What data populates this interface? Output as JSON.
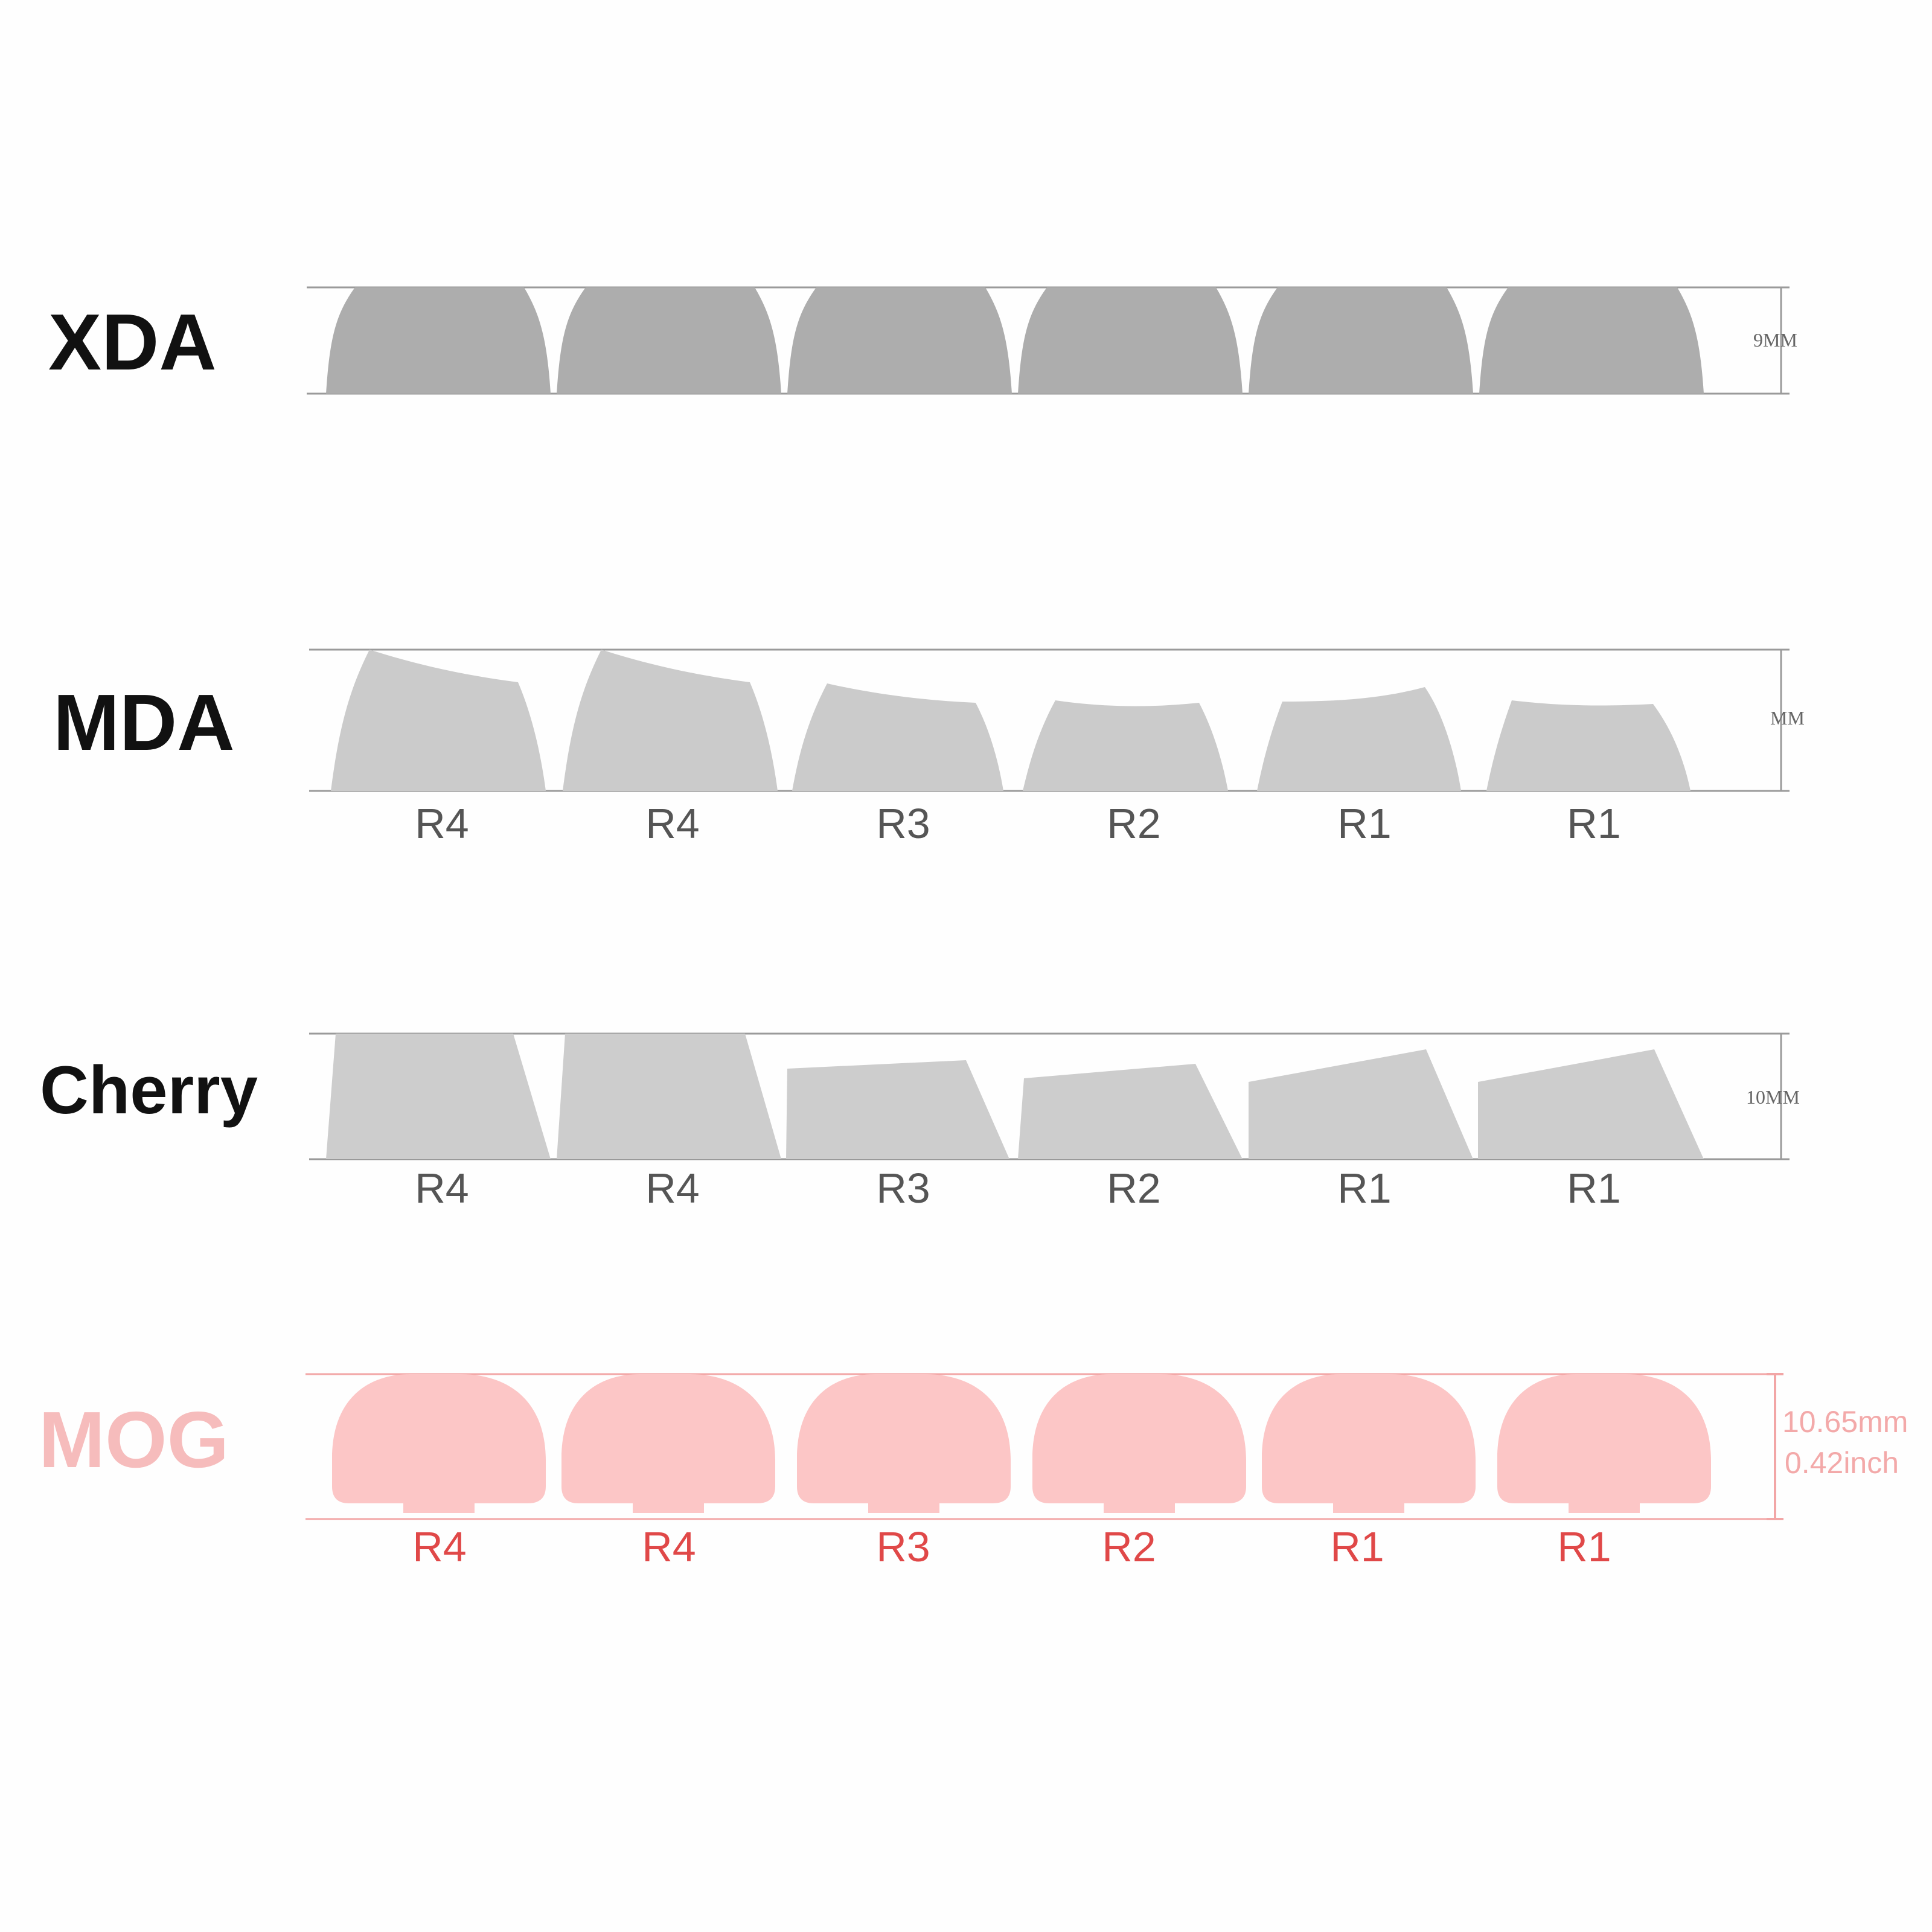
{
  "colors": {
    "text_dark": "#111111",
    "xda_fill": "#adadad",
    "mda_fill": "#cbcbcb",
    "cherry_fill": "#cdcdcd",
    "mog_fill": "#fcc6c6",
    "mog_label": "#f6bcbc",
    "mog_rows": "#e04848",
    "mog_dims": "#f3a9a9",
    "guide_line": "#999999",
    "mog_line": "#f2a6a6",
    "row_label": "#555555"
  },
  "profiles": [
    {
      "id": "xda",
      "label": "XDA",
      "dimension": [
        "9MM"
      ],
      "rows": []
    },
    {
      "id": "mda",
      "label": "MDA",
      "dimension": [
        "MM"
      ],
      "rows": [
        "R4",
        "R4",
        "R3",
        "R2",
        "R1",
        "R1"
      ]
    },
    {
      "id": "cherry",
      "label": "Cherry",
      "dimension": [
        "10MM"
      ],
      "rows": [
        "R4",
        "R4",
        "R3",
        "R2",
        "R1",
        "R1"
      ]
    },
    {
      "id": "mog",
      "label": "MOG",
      "dimension": [
        "10.65mm",
        "0.42inch"
      ],
      "rows": [
        "R4",
        "R4",
        "R3",
        "R2",
        "R1",
        "R1"
      ]
    }
  ]
}
